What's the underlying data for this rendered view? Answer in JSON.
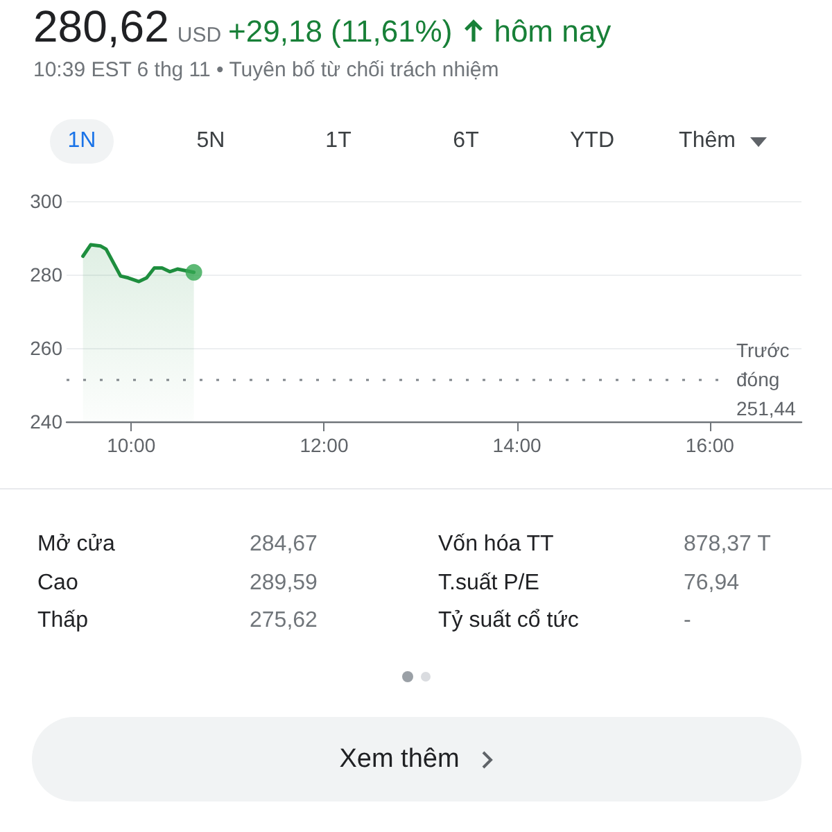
{
  "chart_data": {
    "type": "area",
    "title": "280,62",
    "subtitle": "10:39 EST 6 thg 11 • Tuyên bố từ chối trách nhiệm",
    "annotations": [
      "USD",
      "+29,18 (11,61%)",
      "hôm nay",
      "1N",
      "5N",
      "1T",
      "6T",
      "YTD",
      "Thêm",
      "Mở cửa",
      "284,67",
      "Vốn hóa TT",
      "878,37 T",
      "Cao",
      "289,59",
      "T.suất P/E",
      "76,94",
      "Thấp",
      "275,62",
      "Tỷ suất cổ tức",
      "-",
      "Xem thêm"
    ],
    "series": [
      {
        "color": "#1e8e3e",
        "marker": "none",
        "line_style": "solid",
        "x": [
          9.5,
          9.58,
          9.68,
          9.74,
          9.89,
          9.97,
          10.08,
          10.16,
          10.24,
          10.32,
          10.4,
          10.48,
          10.56,
          10.65
        ],
        "values": [
          285.0,
          288.1,
          287.8,
          286.9,
          279.6,
          279.1,
          278.1,
          279.1,
          281.8,
          281.8,
          280.8,
          281.5,
          281.1,
          280.6
        ]
      },
      {
        "type": "scatter",
        "color": "#34a853",
        "marker": "circle",
        "x": [
          10.65
        ],
        "values": [
          280.6
        ]
      }
    ],
    "xlim": [
      9.33,
      16.95
    ],
    "xticks": [
      {
        "value": 10,
        "label": "10:00"
      },
      {
        "value": 12,
        "label": "12:00"
      },
      {
        "value": 14,
        "label": "14:00"
      },
      {
        "value": 16,
        "label": "16:00"
      }
    ],
    "ylim": [
      240,
      300
    ],
    "yticks": [
      240,
      260,
      280,
      300
    ],
    "grid": "y",
    "ref_lines": [
      {
        "axis": "y",
        "value": 251.44,
        "label": "Trước đóng 251,44",
        "color": "#80868b",
        "line_style": "dotted"
      }
    ]
  }
}
